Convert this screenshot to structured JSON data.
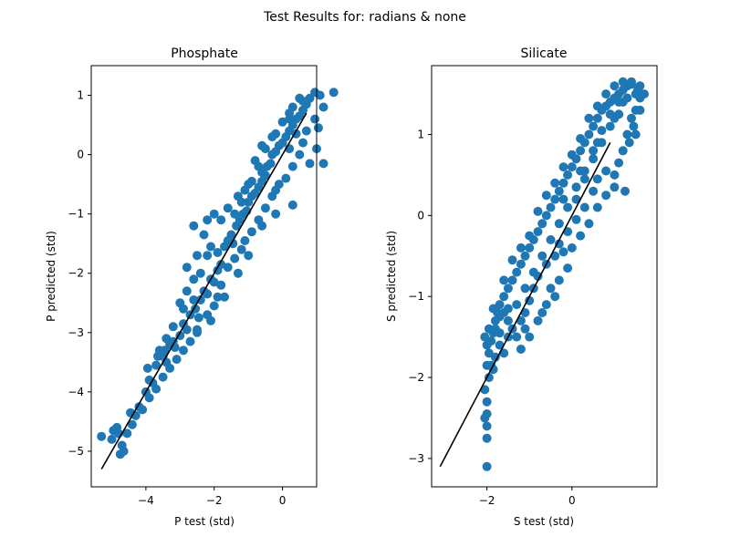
{
  "figure": {
    "suptitle": "Test Results for: radians & none"
  },
  "colors": {
    "points": "#1f77b4",
    "line": "#000000"
  },
  "chart_data": [
    {
      "type": "scatter",
      "title": "Phosphate",
      "xlabel": "P test (std)",
      "ylabel": "P predicted (std)",
      "xlim": [
        -5.6,
        1.0
      ],
      "ylim": [
        -5.6,
        1.5
      ],
      "xticks": [
        -4,
        -2,
        0
      ],
      "yticks": [
        -5,
        -4,
        -3,
        -2,
        -1,
        0,
        1
      ],
      "xticklabels": [
        "−4",
        "−2",
        "0"
      ],
      "yticklabels": [
        "−5",
        "−4",
        "−3",
        "−2",
        "−1",
        "0",
        "1"
      ],
      "grid": false,
      "fit_line": {
        "x": [
          -5.3,
          0.7
        ],
        "y": [
          -5.3,
          0.7
        ]
      },
      "points": [
        [
          -5.3,
          -4.75
        ],
        [
          -5.0,
          -4.8
        ],
        [
          -4.95,
          -4.65
        ],
        [
          -4.85,
          -4.6
        ],
        [
          -4.8,
          -4.7
        ],
        [
          -4.7,
          -4.9
        ],
        [
          -4.75,
          -5.05
        ],
        [
          -4.65,
          -5.0
        ],
        [
          -4.55,
          -4.7
        ],
        [
          -4.4,
          -4.55
        ],
        [
          -4.45,
          -4.35
        ],
        [
          -4.3,
          -4.4
        ],
        [
          -4.2,
          -4.25
        ],
        [
          -4.0,
          -4.0
        ],
        [
          -3.9,
          -3.8
        ],
        [
          -3.95,
          -3.6
        ],
        [
          -3.8,
          -3.85
        ],
        [
          -3.7,
          -3.55
        ],
        [
          -3.65,
          -3.4
        ],
        [
          -3.5,
          -3.4
        ],
        [
          -3.45,
          -3.3
        ],
        [
          -3.4,
          -3.5
        ],
        [
          -3.3,
          -3.2
        ],
        [
          -3.2,
          -3.15
        ],
        [
          -3.15,
          -3.25
        ],
        [
          -3.0,
          -3.05
        ],
        [
          -2.9,
          -2.85
        ],
        [
          -2.8,
          -2.95
        ],
        [
          -2.7,
          -2.7
        ],
        [
          -2.55,
          -2.6
        ],
        [
          -2.45,
          -2.75
        ],
        [
          -2.6,
          -2.45
        ],
        [
          -2.4,
          -2.45
        ],
        [
          -2.3,
          -2.3
        ],
        [
          -2.2,
          -2.35
        ],
        [
          -2.1,
          -2.1
        ],
        [
          -2.0,
          -2.15
        ],
        [
          -1.9,
          -1.95
        ],
        [
          -1.8,
          -1.85
        ],
        [
          -2.2,
          -1.7
        ],
        [
          -2.1,
          -1.55
        ],
        [
          -1.9,
          -1.65
        ],
        [
          -1.7,
          -1.55
        ],
        [
          -1.6,
          -1.45
        ],
        [
          -1.5,
          -1.35
        ],
        [
          -1.45,
          -1.5
        ],
        [
          -1.35,
          -1.2
        ],
        [
          -1.25,
          -1.1
        ],
        [
          -1.15,
          -1.0
        ],
        [
          -1.05,
          -0.95
        ],
        [
          -1.0,
          -0.8
        ],
        [
          -0.9,
          -0.7
        ],
        [
          -0.8,
          -0.65
        ],
        [
          -0.7,
          -0.55
        ],
        [
          -0.6,
          -0.45
        ],
        [
          -0.5,
          -0.35
        ],
        [
          -0.45,
          -0.2
        ],
        [
          -0.35,
          -0.15
        ],
        [
          -0.3,
          0.0
        ],
        [
          -0.2,
          0.05
        ],
        [
          -0.1,
          0.15
        ],
        [
          0.0,
          0.2
        ],
        [
          0.1,
          0.3
        ],
        [
          0.2,
          0.4
        ],
        [
          0.3,
          0.5
        ],
        [
          0.4,
          0.6
        ],
        [
          0.5,
          0.65
        ],
        [
          0.6,
          0.75
        ],
        [
          0.7,
          0.85
        ],
        [
          0.8,
          0.95
        ],
        [
          0.95,
          1.05
        ],
        [
          0.5,
          0.95
        ],
        [
          0.6,
          0.9
        ],
        [
          0.3,
          0.8
        ],
        [
          0.2,
          0.7
        ],
        [
          1.2,
          0.8
        ],
        [
          1.0,
          0.1
        ],
        [
          1.2,
          -0.15
        ],
        [
          1.5,
          1.05
        ],
        [
          1.05,
          0.45
        ],
        [
          -3.0,
          -2.5
        ],
        [
          -2.8,
          -2.3
        ],
        [
          -2.6,
          -2.1
        ],
        [
          -2.4,
          -2.0
        ],
        [
          -2.5,
          -1.7
        ],
        [
          -2.8,
          -1.9
        ],
        [
          -2.3,
          -1.35
        ],
        [
          -2.6,
          -1.2
        ],
        [
          -2.2,
          -1.1
        ],
        [
          -2.0,
          -1.0
        ],
        [
          -1.8,
          -1.1
        ],
        [
          -1.6,
          -0.9
        ],
        [
          -1.3,
          -0.7
        ],
        [
          -1.1,
          -0.6
        ],
        [
          -0.9,
          -0.45
        ],
        [
          -0.6,
          -0.3
        ],
        [
          -0.5,
          0.1
        ],
        [
          -0.3,
          0.3
        ],
        [
          -0.6,
          0.15
        ],
        [
          -0.8,
          -0.1
        ],
        [
          0.0,
          0.55
        ],
        [
          -0.2,
          0.35
        ],
        [
          0.2,
          0.6
        ],
        [
          0.4,
          0.35
        ],
        [
          0.6,
          0.2
        ],
        [
          0.5,
          0.0
        ],
        [
          0.3,
          -0.2
        ],
        [
          0.1,
          -0.4
        ],
        [
          -0.1,
          -0.5
        ],
        [
          -0.3,
          -0.7
        ],
        [
          -0.5,
          -0.9
        ],
        [
          -0.7,
          -1.1
        ],
        [
          -0.9,
          -1.3
        ],
        [
          -1.1,
          -1.45
        ],
        [
          -1.2,
          -1.6
        ],
        [
          -1.4,
          -1.75
        ],
        [
          -1.6,
          -1.9
        ],
        [
          -1.8,
          -2.2
        ],
        [
          -1.9,
          -2.4
        ],
        [
          -2.0,
          -2.55
        ],
        [
          -2.2,
          -2.7
        ],
        [
          -2.5,
          -2.95
        ],
        [
          -2.7,
          -3.15
        ],
        [
          -2.9,
          -3.3
        ],
        [
          -3.1,
          -3.45
        ],
        [
          -3.3,
          -3.6
        ],
        [
          -3.5,
          -3.75
        ],
        [
          -3.7,
          -3.95
        ],
        [
          -3.9,
          -4.1
        ],
        [
          -4.1,
          -4.3
        ],
        [
          -0.2,
          -1.0
        ],
        [
          0.3,
          -0.85
        ],
        [
          0.8,
          -0.15
        ],
        [
          0.95,
          0.6
        ],
        [
          1.1,
          1.0
        ],
        [
          0.7,
          0.4
        ],
        [
          -1.3,
          -2.0
        ],
        [
          -1.7,
          -2.4
        ],
        [
          -2.1,
          -2.8
        ],
        [
          -2.5,
          -3.0
        ],
        [
          -1.0,
          -1.7
        ],
        [
          -0.6,
          -1.2
        ],
        [
          -0.2,
          -0.6
        ],
        [
          0.2,
          0.1
        ],
        [
          -3.2,
          -2.9
        ],
        [
          -3.4,
          -3.1
        ],
        [
          -3.6,
          -3.3
        ],
        [
          -2.9,
          -2.6
        ],
        [
          -1.4,
          -1.0
        ],
        [
          -1.2,
          -0.8
        ],
        [
          -1.0,
          -0.5
        ],
        [
          -0.7,
          -0.2
        ]
      ]
    },
    {
      "type": "scatter",
      "title": "Silicate",
      "xlabel": "S test (std)",
      "ylabel": "S predicted (std)",
      "xlim": [
        -3.3,
        2.0
      ],
      "ylim": [
        -3.35,
        1.85
      ],
      "xticks": [
        -2,
        0
      ],
      "yticks": [
        -3,
        -2,
        -1,
        0,
        1
      ],
      "xticklabels": [
        "−2",
        "0"
      ],
      "yticklabels": [
        "−3",
        "−2",
        "−1",
        "0",
        "1"
      ],
      "grid": false,
      "fit_line": {
        "x": [
          -3.1,
          0.9
        ],
        "y": [
          -3.1,
          0.9
        ]
      },
      "points": [
        [
          -2.0,
          -3.1
        ],
        [
          -2.0,
          -2.75
        ],
        [
          -2.0,
          -2.6
        ],
        [
          -2.0,
          -2.45
        ],
        [
          -2.0,
          -2.3
        ],
        [
          -2.05,
          -2.15
        ],
        [
          -1.95,
          -2.0
        ],
        [
          -2.0,
          -1.85
        ],
        [
          -1.95,
          -1.7
        ],
        [
          -1.9,
          -1.55
        ],
        [
          -1.85,
          -1.45
        ],
        [
          -1.8,
          -1.3
        ],
        [
          -1.75,
          -1.2
        ],
        [
          -1.7,
          -1.1
        ],
        [
          -1.6,
          -1.0
        ],
        [
          -1.5,
          -0.9
        ],
        [
          -1.4,
          -0.8
        ],
        [
          -1.3,
          -0.7
        ],
        [
          -1.2,
          -0.6
        ],
        [
          -1.1,
          -0.5
        ],
        [
          -1.0,
          -0.4
        ],
        [
          -0.9,
          -0.3
        ],
        [
          -0.8,
          -0.2
        ],
        [
          -0.7,
          -0.1
        ],
        [
          -0.6,
          0.0
        ],
        [
          -0.5,
          0.1
        ],
        [
          -0.4,
          0.2
        ],
        [
          -0.3,
          0.3
        ],
        [
          -0.2,
          0.4
        ],
        [
          -0.1,
          0.5
        ],
        [
          0.0,
          0.6
        ],
        [
          0.1,
          0.7
        ],
        [
          0.2,
          0.8
        ],
        [
          0.3,
          0.9
        ],
        [
          0.4,
          1.0
        ],
        [
          0.5,
          1.1
        ],
        [
          0.6,
          1.2
        ],
        [
          0.7,
          1.3
        ],
        [
          0.8,
          1.35
        ],
        [
          0.9,
          1.4
        ],
        [
          1.0,
          1.45
        ],
        [
          1.1,
          1.5
        ],
        [
          1.2,
          1.55
        ],
        [
          1.3,
          1.6
        ],
        [
          1.4,
          1.62
        ],
        [
          1.55,
          1.55
        ],
        [
          1.6,
          1.45
        ],
        [
          1.5,
          1.3
        ],
        [
          1.4,
          1.2
        ],
        [
          1.5,
          1.0
        ],
        [
          1.35,
          0.9
        ],
        [
          1.2,
          0.8
        ],
        [
          1.1,
          0.65
        ],
        [
          1.25,
          0.3
        ],
        [
          1.0,
          0.5
        ],
        [
          0.8,
          0.55
        ],
        [
          0.6,
          0.45
        ],
        [
          0.5,
          0.3
        ],
        [
          0.3,
          0.1
        ],
        [
          0.1,
          -0.05
        ],
        [
          -0.1,
          -0.2
        ],
        [
          -0.3,
          -0.35
        ],
        [
          -0.4,
          -0.5
        ],
        [
          -0.6,
          -0.6
        ],
        [
          -0.8,
          -0.75
        ],
        [
          -0.9,
          -0.9
        ],
        [
          -1.0,
          -1.05
        ],
        [
          -1.1,
          -1.2
        ],
        [
          -1.2,
          -1.3
        ],
        [
          -1.4,
          -1.4
        ],
        [
          -1.5,
          -1.5
        ],
        [
          -1.6,
          -1.7
        ],
        [
          -1.7,
          -1.6
        ],
        [
          -1.8,
          -1.75
        ],
        [
          -1.9,
          -1.85
        ],
        [
          -1.85,
          -1.9
        ],
        [
          -1.7,
          -1.25
        ],
        [
          -1.85,
          -1.15
        ],
        [
          -1.5,
          -1.15
        ],
        [
          -1.6,
          -0.8
        ],
        [
          -1.4,
          -0.55
        ],
        [
          -1.2,
          -0.4
        ],
        [
          -1.0,
          -0.25
        ],
        [
          -0.8,
          0.05
        ],
        [
          -0.6,
          0.25
        ],
        [
          -0.4,
          0.4
        ],
        [
          -0.2,
          0.6
        ],
        [
          0.0,
          0.75
        ],
        [
          0.2,
          0.95
        ],
        [
          0.4,
          1.2
        ],
        [
          0.6,
          1.35
        ],
        [
          0.8,
          1.5
        ],
        [
          1.0,
          1.6
        ],
        [
          1.2,
          1.65
        ],
        [
          1.4,
          1.65
        ],
        [
          1.6,
          1.6
        ],
        [
          1.7,
          1.5
        ],
        [
          1.6,
          1.3
        ],
        [
          1.45,
          1.1
        ],
        [
          1.3,
          1.0
        ],
        [
          -1.0,
          -1.5
        ],
        [
          -0.8,
          -1.3
        ],
        [
          -0.6,
          -1.1
        ],
        [
          -0.4,
          -1.0
        ],
        [
          -0.3,
          -0.8
        ],
        [
          -0.1,
          -0.65
        ],
        [
          0.0,
          -0.4
        ],
        [
          0.2,
          -0.25
        ],
        [
          0.4,
          -0.1
        ],
        [
          0.6,
          0.1
        ],
        [
          0.8,
          0.25
        ],
        [
          1.0,
          0.35
        ],
        [
          -1.2,
          -1.65
        ],
        [
          -1.3,
          -1.5
        ],
        [
          -1.1,
          -1.4
        ],
        [
          -0.7,
          -1.2
        ],
        [
          -0.5,
          -0.9
        ],
        [
          -0.2,
          -0.45
        ],
        [
          0.1,
          0.2
        ],
        [
          0.3,
          0.45
        ],
        [
          0.5,
          0.7
        ],
        [
          0.7,
          0.9
        ],
        [
          0.9,
          1.1
        ],
        [
          1.1,
          1.25
        ],
        [
          1.2,
          1.4
        ],
        [
          -2.05,
          -1.5
        ],
        [
          -1.95,
          -1.4
        ],
        [
          -1.7,
          -1.45
        ],
        [
          -1.5,
          -1.3
        ],
        [
          -1.3,
          -1.1
        ],
        [
          -1.1,
          -0.9
        ],
        [
          -0.9,
          -0.7
        ],
        [
          -0.7,
          -0.5
        ],
        [
          -0.5,
          -0.3
        ],
        [
          -0.3,
          -0.1
        ],
        [
          -0.1,
          0.1
        ],
        [
          0.1,
          0.35
        ],
        [
          0.3,
          0.55
        ],
        [
          0.5,
          0.8
        ],
        [
          0.7,
          1.05
        ],
        [
          0.9,
          1.25
        ],
        [
          1.1,
          1.4
        ],
        [
          1.3,
          1.45
        ],
        [
          1.5,
          1.5
        ],
        [
          -0.2,
          0.2
        ],
        [
          0.2,
          0.55
        ],
        [
          0.6,
          0.9
        ],
        [
          1.0,
          1.2
        ],
        [
          -1.6,
          -1.2
        ],
        [
          -1.8,
          -1.4
        ],
        [
          -2.0,
          -1.6
        ],
        [
          -2.05,
          -2.5
        ]
      ]
    }
  ]
}
